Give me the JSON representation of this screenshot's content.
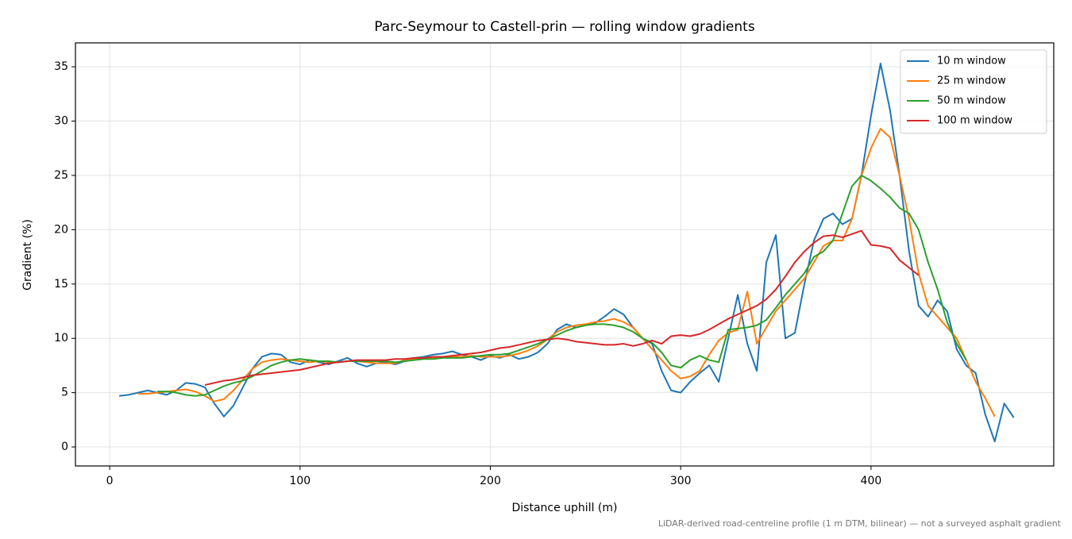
{
  "chart_data": {
    "type": "line",
    "title": "Parc-Seymour to Castell-prin — rolling window gradients",
    "xlabel": "Distance uphill (m)",
    "ylabel": "Gradient (%)",
    "note": "LiDAR-derived road-centreline profile (1 m DTM, bilinear) — not a surveyed asphalt gradient",
    "x": [
      5,
      10,
      15,
      20,
      25,
      30,
      35,
      40,
      45,
      50,
      55,
      60,
      65,
      70,
      75,
      80,
      85,
      90,
      95,
      100,
      105,
      110,
      115,
      120,
      125,
      130,
      135,
      140,
      145,
      150,
      155,
      160,
      165,
      170,
      175,
      180,
      185,
      190,
      195,
      200,
      205,
      210,
      215,
      220,
      225,
      230,
      235,
      240,
      245,
      250,
      255,
      260,
      265,
      270,
      275,
      280,
      285,
      290,
      295,
      300,
      305,
      310,
      315,
      320,
      325,
      330,
      335,
      340,
      345,
      350,
      355,
      360,
      365,
      370,
      375,
      380,
      385,
      390,
      395,
      400,
      405,
      410,
      415,
      420,
      425,
      430,
      435,
      440,
      445,
      450,
      455,
      460,
      465,
      470,
      475
    ],
    "series": [
      {
        "name": "10 m window",
        "color": "#1f77b4",
        "values": [
          4.7,
          4.8,
          5.0,
          5.2,
          5.0,
          4.8,
          5.2,
          5.9,
          5.8,
          5.5,
          4.0,
          2.8,
          3.8,
          5.5,
          7.2,
          8.3,
          8.6,
          8.5,
          7.8,
          7.6,
          8.0,
          7.8,
          7.6,
          7.9,
          8.2,
          7.7,
          7.4,
          7.7,
          7.8,
          7.6,
          7.9,
          8.2,
          8.3,
          8.5,
          8.6,
          8.8,
          8.5,
          8.3,
          8.0,
          8.4,
          8.2,
          8.5,
          8.1,
          8.3,
          8.7,
          9.5,
          10.8,
          11.3,
          11.0,
          11.2,
          11.4,
          12.0,
          12.7,
          12.2,
          11.0,
          10.0,
          9.5,
          7.0,
          5.2,
          5.0,
          6.0,
          6.8,
          7.5,
          6.0,
          10.0,
          14.0,
          9.5,
          7.0,
          17.0,
          19.5,
          10.0,
          10.5,
          15.0,
          19.0,
          21.0,
          21.5,
          20.5,
          21.0,
          25.0,
          30.5,
          35.3,
          31.0,
          25.0,
          18.0,
          13.0,
          12.0,
          13.5,
          12.5,
          9.0,
          7.5,
          6.8,
          3.0,
          0.5,
          4.0,
          2.7
        ]
      },
      {
        "name": "25 m window",
        "color": "#ff7f0e",
        "values": [
          null,
          null,
          4.9,
          4.9,
          5.0,
          5.1,
          5.2,
          5.3,
          5.1,
          4.7,
          4.2,
          4.4,
          5.2,
          6.2,
          7.2,
          7.8,
          8.0,
          8.1,
          8.0,
          7.9,
          7.8,
          7.9,
          7.8,
          7.8,
          7.9,
          7.9,
          7.8,
          7.7,
          7.7,
          7.7,
          8.0,
          8.1,
          8.2,
          8.2,
          8.3,
          8.3,
          8.3,
          8.4,
          8.3,
          8.3,
          8.3,
          8.4,
          8.6,
          8.9,
          9.3,
          9.9,
          10.6,
          11.0,
          11.2,
          11.3,
          11.5,
          11.6,
          11.8,
          11.5,
          11.0,
          10.0,
          9.0,
          8.0,
          7.0,
          6.3,
          6.5,
          7.0,
          8.5,
          9.8,
          10.5,
          10.8,
          14.3,
          9.5,
          11.0,
          12.5,
          13.5,
          14.5,
          15.5,
          17.0,
          18.5,
          19.0,
          19.0,
          21.0,
          25.0,
          27.5,
          29.3,
          28.5,
          25.0,
          21.0,
          16.0,
          13.0,
          12.0,
          11.0,
          10.0,
          8.0,
          6.0,
          4.5,
          2.8,
          null,
          null
        ]
      },
      {
        "name": "50 m window",
        "color": "#2ca02c",
        "values": [
          null,
          null,
          null,
          null,
          5.1,
          5.1,
          5.0,
          4.8,
          4.7,
          4.8,
          5.2,
          5.6,
          5.9,
          6.1,
          6.5,
          7.0,
          7.5,
          7.8,
          8.0,
          8.1,
          8.0,
          7.9,
          7.9,
          7.8,
          7.9,
          7.9,
          7.9,
          7.9,
          7.9,
          7.8,
          7.9,
          8.0,
          8.1,
          8.1,
          8.2,
          8.2,
          8.2,
          8.3,
          8.4,
          8.5,
          8.5,
          8.6,
          8.9,
          9.2,
          9.5,
          9.9,
          10.3,
          10.7,
          11.0,
          11.2,
          11.3,
          11.3,
          11.2,
          11.0,
          10.6,
          10.0,
          9.6,
          8.7,
          7.5,
          7.3,
          8.0,
          8.4,
          8.0,
          7.8,
          10.8,
          10.9,
          11.0,
          11.2,
          11.7,
          12.8,
          14.0,
          15.0,
          16.0,
          17.5,
          18.0,
          19.0,
          21.5,
          24.0,
          25.0,
          24.5,
          23.8,
          23.0,
          22.0,
          21.5,
          20.0,
          17.0,
          14.5,
          11.5,
          9.5,
          8.0,
          null,
          null,
          null,
          null,
          null
        ]
      },
      {
        "name": "100 m window",
        "color": "#d62728",
        "values": [
          null,
          null,
          null,
          null,
          null,
          null,
          null,
          null,
          null,
          5.7,
          5.9,
          6.1,
          6.2,
          6.4,
          6.6,
          6.7,
          6.8,
          6.9,
          7.0,
          7.1,
          7.3,
          7.5,
          7.7,
          7.8,
          7.9,
          8.0,
          8.0,
          8.0,
          8.0,
          8.1,
          8.1,
          8.2,
          8.2,
          8.3,
          8.3,
          8.4,
          8.5,
          8.6,
          8.7,
          8.9,
          9.1,
          9.2,
          9.4,
          9.6,
          9.8,
          9.9,
          10.0,
          9.9,
          9.7,
          9.6,
          9.5,
          9.4,
          9.4,
          9.5,
          9.3,
          9.5,
          9.8,
          9.5,
          10.2,
          10.3,
          10.2,
          10.4,
          10.8,
          11.3,
          11.8,
          12.2,
          12.6,
          13.0,
          13.6,
          14.5,
          15.7,
          17.0,
          18.0,
          18.8,
          19.4,
          19.5,
          19.3,
          19.6,
          19.9,
          18.6,
          18.5,
          18.3,
          17.2,
          16.5,
          15.8,
          null,
          null,
          null,
          null,
          null,
          null,
          null,
          null,
          null,
          null
        ]
      }
    ],
    "xlim": [
      -18,
      496
    ],
    "ylim": [
      -1.75,
      37.2
    ],
    "xticks": [
      0,
      100,
      200,
      300,
      400
    ],
    "yticks": [
      0,
      5,
      10,
      15,
      20,
      25,
      30,
      35
    ],
    "grid": true,
    "legend": "upper right"
  }
}
